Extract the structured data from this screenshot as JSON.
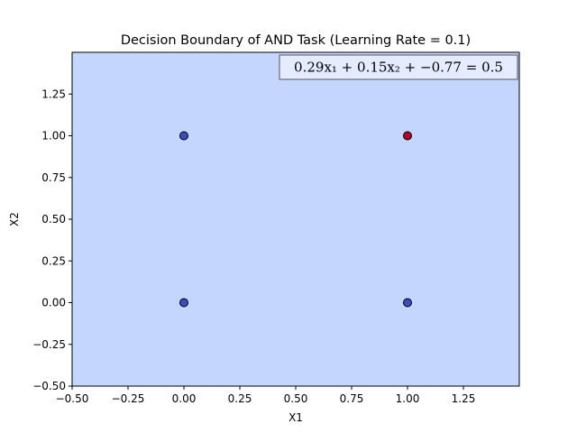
{
  "chart_data": {
    "type": "scatter",
    "title": "Decision Boundary of AND Task (Learning Rate = 0.1)",
    "xlabel": "X1",
    "ylabel": "X2",
    "xlim": [
      -0.5,
      1.5
    ],
    "ylim": [
      -0.5,
      1.5
    ],
    "x_ticks": [
      -0.5,
      -0.25,
      0.0,
      0.25,
      0.5,
      0.75,
      1.0,
      1.25
    ],
    "y_ticks": [
      -0.5,
      -0.25,
      0.0,
      0.25,
      0.5,
      0.75,
      1.0,
      1.25
    ],
    "x_tick_labels": [
      "−0.50",
      "−0.25",
      "0.00",
      "0.25",
      "0.50",
      "0.75",
      "1.00",
      "1.25"
    ],
    "y_tick_labels": [
      "−0.50",
      "−0.25",
      "0.00",
      "0.25",
      "0.50",
      "0.75",
      "1.00",
      "1.25"
    ],
    "grid": false,
    "region_color": "#c5d6fe",
    "annotation": {
      "equation": "0.29x₁ + 0.15x₂ + −0.77 = 0.5",
      "placement": "top-right"
    },
    "points": [
      {
        "x": 0,
        "y": 0,
        "label": 0,
        "color": "#3b4cc0"
      },
      {
        "x": 0,
        "y": 1,
        "label": 0,
        "color": "#3b4cc0"
      },
      {
        "x": 1,
        "y": 0,
        "label": 0,
        "color": "#3b4cc0"
      },
      {
        "x": 1,
        "y": 1,
        "label": 1,
        "color": "#b40426"
      }
    ]
  }
}
